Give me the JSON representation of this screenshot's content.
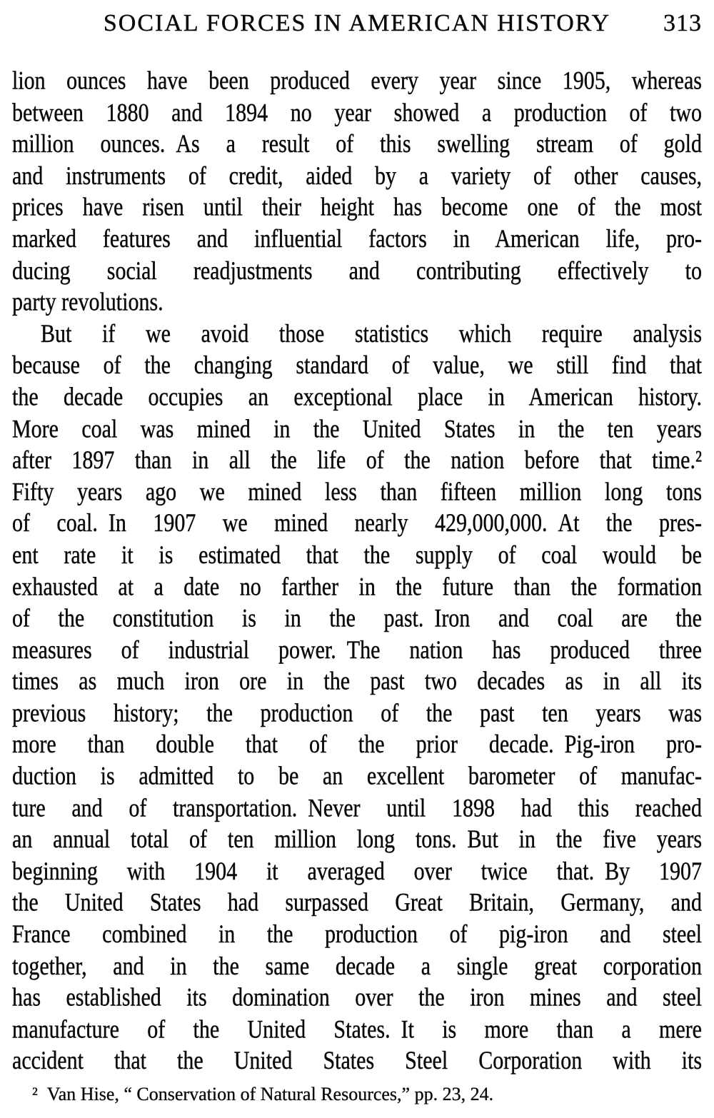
{
  "page": {
    "header": {
      "title": "SOCIAL FORCES IN AMERICAN HISTORY",
      "page_number": "313"
    },
    "body_lines": [
      {
        "text": "lion ounces have been produced every year since 1905, whereas"
      },
      {
        "text": "between 1880 and 1894 no year showed a production of two"
      },
      {
        "text": "million ounces. As a result of this swelling stream of gold"
      },
      {
        "text": "and instruments of credit, aided by a variety of other causes,"
      },
      {
        "text": "prices have risen until their height has become one of the most"
      },
      {
        "text": "marked features and influential factors in American life, pro-"
      },
      {
        "text": "ducing social readjustments and contributing effectively to"
      },
      {
        "text": "party revolutions.",
        "flush": true
      },
      {
        "text": "But if we avoid those statistics which require analysis",
        "indent": true
      },
      {
        "text": "because of the changing standard of value, we still find that"
      },
      {
        "text": "the decade occupies an exceptional place in American history."
      },
      {
        "text": "More coal was mined in the United States in the ten years"
      },
      {
        "text": "after 1897 than in all the life of the nation before that time.²"
      },
      {
        "text": "Fifty years ago we mined less than fifteen million long tons"
      },
      {
        "text": "of coal. In 1907 we mined nearly 429,000,000. At the pres-"
      },
      {
        "text": "ent rate it is estimated that the supply of coal would be"
      },
      {
        "text": "exhausted at a date no farther in the future than the formation"
      },
      {
        "text": "of the constitution is in the past. Iron and coal are the"
      },
      {
        "text": "measures of industrial power. The nation has produced three"
      },
      {
        "text": "times as much iron ore in the past two decades as in all its"
      },
      {
        "text": "previous history; the production of the past ten years was"
      },
      {
        "text": "more than double that of the prior decade. Pig-iron pro-"
      },
      {
        "text": "duction is admitted to be an excellent barometer of manufac-"
      },
      {
        "text": "ture and of transportation. Never until 1898 had this reached"
      },
      {
        "text": "an annual total of ten million long tons. But in the five years"
      },
      {
        "text": "beginning with 1904 it averaged over twice that. By 1907"
      },
      {
        "text": "the United States had surpassed Great Britain, Germany, and"
      },
      {
        "text": "France combined in the production of pig-iron and steel"
      },
      {
        "text": "together, and in the same decade a single great corporation"
      },
      {
        "text": "has established its domination over the iron mines and steel"
      },
      {
        "text": "manufacture of the United States. It is more than a mere"
      },
      {
        "text": "accident that the United States Steel Corporation with its"
      }
    ],
    "footnote": "² Van Hise, “ Conservation of Natural Resources,” pp. 23, 24."
  }
}
